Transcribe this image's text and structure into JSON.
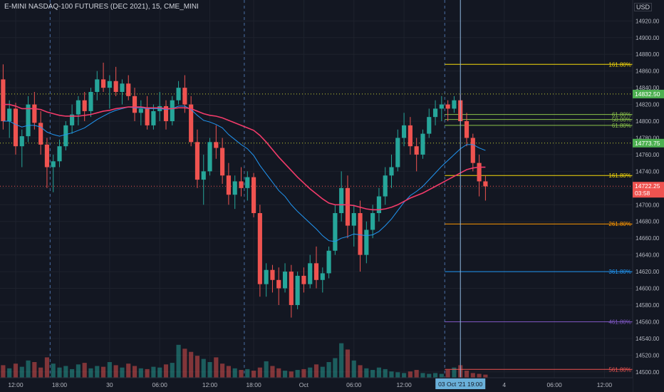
{
  "header": {
    "title": "E-MINI NASDAQ-100 FUTURES (DEC 2021), 15, CME_MINI",
    "currency": "USD"
  },
  "colors": {
    "background": "#131722",
    "up": "#26a69a",
    "down": "#ef5350",
    "ema_fast": "#2196f3",
    "ema_slow": "#f23b6a",
    "grid": "#1e222d",
    "axis_text": "#b2b5be"
  },
  "chart_data": {
    "type": "candlestick",
    "title": "E-MINI NASDAQ-100 FUTURES (DEC 2021), 15, CME_MINI",
    "ylim": [
      14493,
      14945
    ],
    "y_ticks": [
      14500,
      14520,
      14540,
      14560,
      14580,
      14600,
      14620,
      14640,
      14660,
      14680,
      14700,
      14720,
      14740,
      14760,
      14780,
      14800,
      14820,
      14840,
      14860,
      14880,
      14900,
      14920
    ],
    "x_ticks": [
      {
        "label": "12:00",
        "idx": 2
      },
      {
        "label": "18:00",
        "idx": 9
      },
      {
        "label": "30",
        "idx": 17
      },
      {
        "label": "06:00",
        "idx": 25
      },
      {
        "label": "12:00",
        "idx": 33
      },
      {
        "label": "18:00",
        "idx": 40
      },
      {
        "label": "Oct",
        "idx": 48
      },
      {
        "label": "06:00",
        "idx": 56
      },
      {
        "label": "12:00",
        "idx": 64
      },
      {
        "label": "4",
        "idx": 80
      },
      {
        "label": "06:00",
        "idx": 88
      },
      {
        "label": "12:00",
        "idx": 96
      }
    ],
    "crosshair_label": "03 Oct '21   19:00",
    "session_breaks": [
      8,
      39,
      71
    ],
    "bars_in_view": 101,
    "candles": [
      [
        14850,
        14868,
        14790,
        14800
      ],
      [
        14800,
        14825,
        14780,
        14815
      ],
      [
        14815,
        14822,
        14760,
        14770
      ],
      [
        14770,
        14790,
        14745,
        14782
      ],
      [
        14782,
        14830,
        14775,
        14820
      ],
      [
        14820,
        14835,
        14790,
        14798
      ],
      [
        14798,
        14812,
        14760,
        14772
      ],
      [
        14772,
        14780,
        14720,
        14745
      ],
      [
        14745,
        14760,
        14715,
        14752
      ],
      [
        14752,
        14778,
        14745,
        14770
      ],
      [
        14770,
        14800,
        14765,
        14795
      ],
      [
        14795,
        14820,
        14785,
        14808
      ],
      [
        14808,
        14830,
        14795,
        14825
      ],
      [
        14825,
        14835,
        14800,
        14812
      ],
      [
        14812,
        14840,
        14805,
        14835
      ],
      [
        14835,
        14860,
        14825,
        14850
      ],
      [
        14850,
        14870,
        14835,
        14840
      ],
      [
        14840,
        14855,
        14815,
        14848
      ],
      [
        14848,
        14865,
        14830,
        14835
      ],
      [
        14835,
        14850,
        14820,
        14845
      ],
      [
        14845,
        14855,
        14825,
        14830
      ],
      [
        14830,
        14840,
        14800,
        14810
      ],
      [
        14810,
        14825,
        14795,
        14815
      ],
      [
        14815,
        14830,
        14790,
        14795
      ],
      [
        14795,
        14820,
        14790,
        14812
      ],
      [
        14812,
        14835,
        14800,
        14818
      ],
      [
        14818,
        14825,
        14790,
        14800
      ],
      [
        14800,
        14830,
        14795,
        14825
      ],
      [
        14825,
        14848,
        14820,
        14840
      ],
      [
        14840,
        14855,
        14810,
        14820
      ],
      [
        14820,
        14830,
        14770,
        14775
      ],
      [
        14775,
        14790,
        14720,
        14730
      ],
      [
        14730,
        14760,
        14700,
        14740
      ],
      [
        14740,
        14780,
        14735,
        14775
      ],
      [
        14775,
        14795,
        14755,
        14768
      ],
      [
        14768,
        14780,
        14725,
        14735
      ],
      [
        14735,
        14750,
        14700,
        14712
      ],
      [
        14712,
        14735,
        14695,
        14728
      ],
      [
        14728,
        14745,
        14710,
        14720
      ],
      [
        14720,
        14740,
        14705,
        14733
      ],
      [
        14733,
        14738,
        14685,
        14690
      ],
      [
        14690,
        14700,
        14590,
        14605
      ],
      [
        14605,
        14630,
        14590,
        14622
      ],
      [
        14622,
        14628,
        14595,
        14610
      ],
      [
        14610,
        14625,
        14580,
        14600
      ],
      [
        14600,
        14630,
        14595,
        14620
      ],
      [
        14620,
        14628,
        14565,
        14580
      ],
      [
        14580,
        14620,
        14575,
        14615
      ],
      [
        14615,
        14625,
        14595,
        14605
      ],
      [
        14605,
        14640,
        14600,
        14630
      ],
      [
        14630,
        14650,
        14600,
        14610
      ],
      [
        14610,
        14625,
        14595,
        14618
      ],
      [
        14618,
        14650,
        14612,
        14645
      ],
      [
        14645,
        14700,
        14640,
        14690
      ],
      [
        14690,
        14740,
        14680,
        14720
      ],
      [
        14720,
        14735,
        14660,
        14675
      ],
      [
        14675,
        14700,
        14650,
        14690
      ],
      [
        14690,
        14705,
        14620,
        14640
      ],
      [
        14640,
        14680,
        14630,
        14670
      ],
      [
        14670,
        14700,
        14660,
        14690
      ],
      [
        14690,
        14720,
        14680,
        14710
      ],
      [
        14710,
        14745,
        14700,
        14735
      ],
      [
        14735,
        14760,
        14720,
        14745
      ],
      [
        14745,
        14790,
        14740,
        14780
      ],
      [
        14780,
        14810,
        14770,
        14795
      ],
      [
        14795,
        14805,
        14760,
        14770
      ],
      [
        14770,
        14780,
        14740,
        14760
      ],
      [
        14760,
        14790,
        14755,
        14785
      ],
      [
        14785,
        14815,
        14780,
        14805
      ],
      [
        14805,
        14825,
        14795,
        14815
      ],
      [
        14815,
        14830,
        14800,
        14820
      ],
      [
        14820,
        14825,
        14800,
        14815
      ],
      [
        14815,
        14830,
        14810,
        14825
      ],
      [
        14825,
        14832,
        14795,
        14800
      ],
      [
        14800,
        14810,
        14770,
        14780
      ],
      [
        14780,
        14785,
        14740,
        14750
      ],
      [
        14750,
        14760,
        14710,
        14728
      ],
      [
        14728,
        14735,
        14705,
        14722
      ]
    ],
    "volumes": [
      0.16,
      0.12,
      0.18,
      0.14,
      0.22,
      0.2,
      0.13,
      0.26,
      0.18,
      0.13,
      0.15,
      0.11,
      0.17,
      0.19,
      0.12,
      0.15,
      0.14,
      0.2,
      0.16,
      0.13,
      0.18,
      0.15,
      0.12,
      0.11,
      0.14,
      0.13,
      0.17,
      0.19,
      0.42,
      0.37,
      0.33,
      0.28,
      0.24,
      0.2,
      0.26,
      0.18,
      0.15,
      0.12,
      0.1,
      0.11,
      0.09,
      0.13,
      0.21,
      0.15,
      0.12,
      0.09,
      0.08,
      0.1,
      0.11,
      0.13,
      0.17,
      0.14,
      0.2,
      0.25,
      0.44,
      0.36,
      0.22,
      0.16,
      0.12,
      0.1,
      0.13,
      0.11,
      0.08,
      0.07,
      0.06,
      0.08,
      0.1,
      0.06,
      0.05,
      0.06,
      0.05,
      0.1,
      0.13,
      0.16,
      0.09,
      0.06,
      0.05,
      0.04
    ],
    "series": [
      {
        "name": "EMA fast",
        "values": [
          14800,
          14800,
          14796,
          14793,
          14795,
          14795,
          14793,
          14787,
          14784,
          14782,
          14784,
          14786,
          14789,
          14792,
          14797,
          14802,
          14806,
          14810,
          14813,
          14815,
          14817,
          14816,
          14816,
          14815,
          14815,
          14815,
          14814,
          14815,
          14818,
          14818,
          14814,
          14807,
          14801,
          14799,
          14796,
          14792,
          14784,
          14778,
          14772,
          14767,
          14759,
          14747,
          14737,
          14727,
          14717,
          14710,
          14700,
          14692,
          14685,
          14678,
          14671,
          14663,
          14657,
          14656,
          14660,
          14662,
          14665,
          14664,
          14663,
          14664,
          14668,
          14675,
          14683,
          14693,
          14703,
          14711,
          14716,
          14722,
          14730,
          14738,
          14746,
          14753,
          14760,
          14767,
          14772,
          14772,
          14768,
          14765
        ]
      },
      {
        "name": "EMA slow",
        "values": [
          14820,
          14820,
          14818,
          14815,
          14815,
          14815,
          14814,
          14811,
          14809,
          14807,
          14806,
          14806,
          14806,
          14807,
          14808,
          14810,
          14812,
          14813,
          14815,
          14816,
          14817,
          14817,
          14817,
          14816,
          14816,
          14816,
          14815,
          14815,
          14816,
          14816,
          14815,
          14812,
          14809,
          14807,
          14806,
          14804,
          14801,
          14798,
          14795,
          14792,
          14789,
          14783,
          14775,
          14766,
          14757,
          14749,
          14741,
          14733,
          14726,
          14719,
          14713,
          14707,
          14702,
          14700,
          14700,
          14700,
          14699,
          14697,
          14695,
          14694,
          14694,
          14695,
          14697,
          14700,
          14704,
          14708,
          14711,
          14714,
          14718,
          14722,
          14726,
          14730,
          14734,
          14738,
          14742,
          14744,
          14745,
          14745
        ]
      }
    ],
    "price_labels": [
      {
        "value": 14832.5,
        "label": "14832.50",
        "color": "#4caf50",
        "line": "dotted",
        "line_color": "#c0ca33"
      },
      {
        "value": 14773.75,
        "label": "14773.75",
        "color": "#4caf50",
        "line": "dotted",
        "line_color": "#c0ca33"
      },
      {
        "value": 14722.25,
        "label": "14722.25",
        "sublabel": "03:58",
        "color": "#ef5350",
        "line": "dotted",
        "line_color": "#ef5350"
      }
    ],
    "fib_levels": [
      {
        "label": "161.80%",
        "value": 14868,
        "color": "#f5d90a"
      },
      {
        "label": "61.80%",
        "value": 14808,
        "color": "#8bc34a"
      },
      {
        "label": "50.00%",
        "value": 14802,
        "color": "#8bc34a"
      },
      {
        "label": "61.80%",
        "value": 14795,
        "color": "#8bc34a"
      },
      {
        "label": "161.80%",
        "value": 14735,
        "color": "#f5d90a"
      },
      {
        "label": "261.80%",
        "value": 14677,
        "color": "#ff9800"
      },
      {
        "label": "361.80%",
        "value": 14620,
        "color": "#2196f3"
      },
      {
        "label": "461.80%",
        "value": 14560,
        "color": "#7e57c2"
      },
      {
        "label": "561.80%",
        "value": 14503,
        "color": "#ef5350"
      }
    ]
  }
}
